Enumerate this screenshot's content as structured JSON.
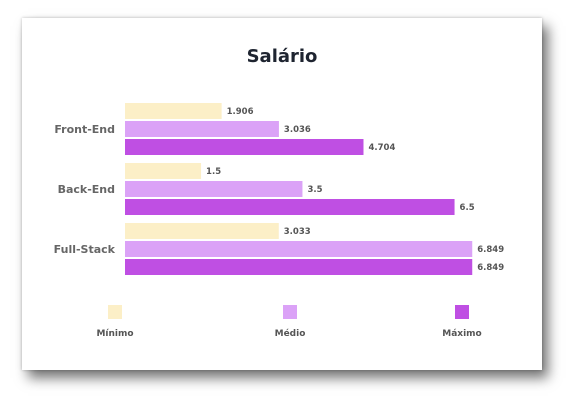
{
  "chart_data": {
    "type": "bar",
    "orientation": "horizontal",
    "title": "Salário",
    "categories": [
      "Front-End",
      "Back-End",
      "Full-Stack"
    ],
    "series": [
      {
        "name": "Mínimo",
        "color": "#fcefc7",
        "values": [
          1.906,
          1.5,
          3.033
        ],
        "labels": [
          "1.906",
          "1.5",
          "3.033"
        ]
      },
      {
        "name": "Médio",
        "color": "#dba2f7",
        "values": [
          3.036,
          3.5,
          6.849
        ],
        "labels": [
          "3.036",
          "3.5",
          "6.849"
        ]
      },
      {
        "name": "Máximo",
        "color": "#bf4fe3",
        "values": [
          4.704,
          6.5,
          6.849
        ],
        "labels": [
          "4.704",
          "6.5",
          "6.849"
        ]
      }
    ],
    "xlim": [
      0,
      7
    ],
    "grid": false,
    "legend_position": "bottom"
  }
}
